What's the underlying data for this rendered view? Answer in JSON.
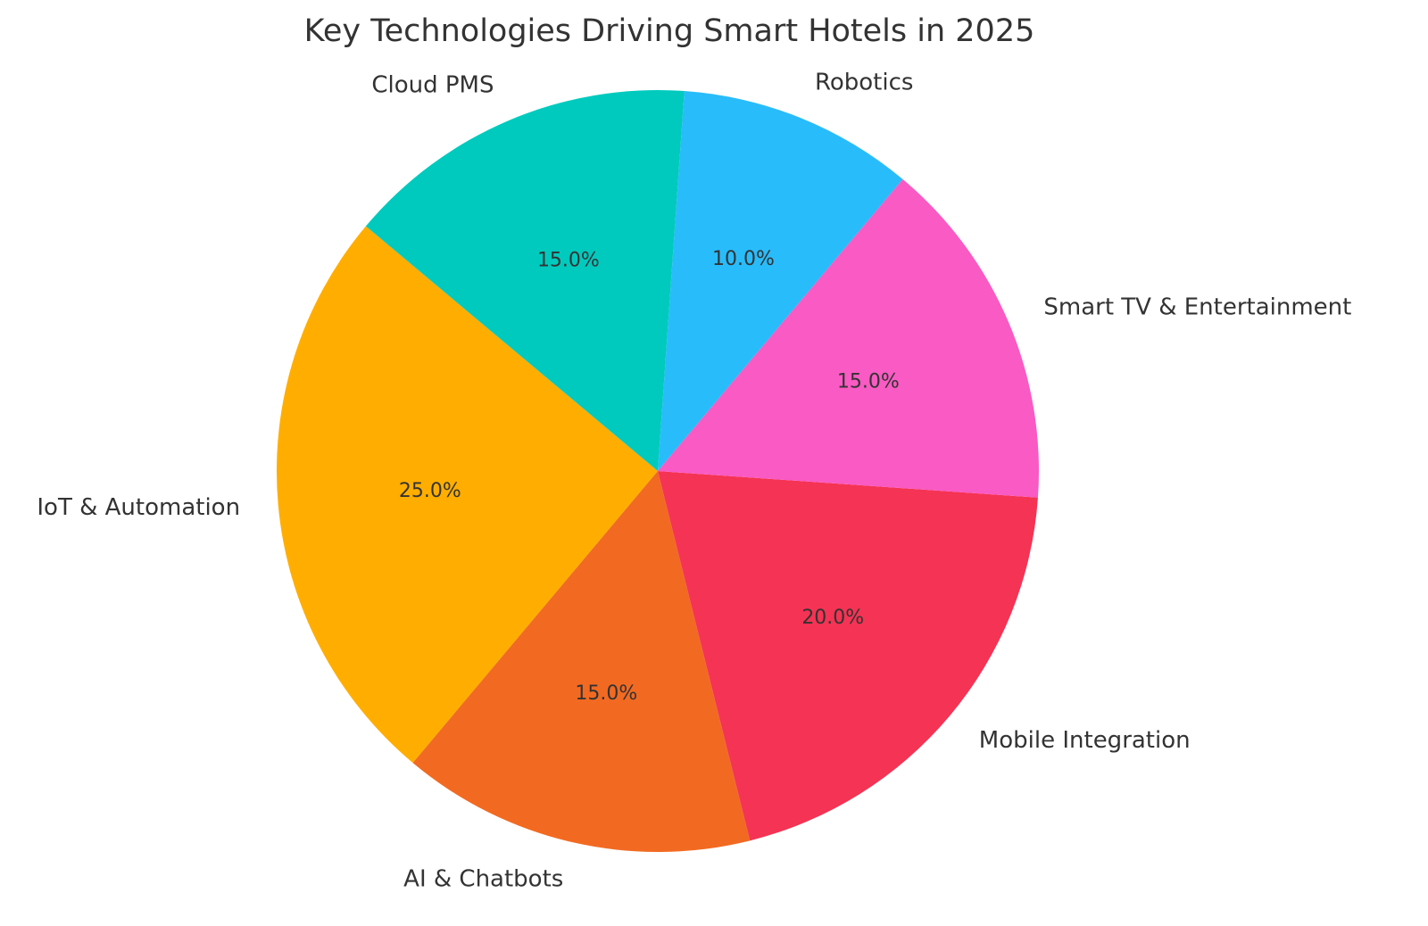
{
  "chart_data": {
    "type": "pie",
    "title": "Key Technologies Driving Smart Hotels in 2025",
    "labels": [
      "IoT & Automation",
      "AI & Chatbots",
      "Mobile Integration",
      "Smart TV & Entertainment",
      "Robotics",
      "Cloud PMS"
    ],
    "values": [
      25,
      15,
      20,
      15,
      10,
      15
    ],
    "percent_labels": [
      "25.0%",
      "15.0%",
      "20.0%",
      "15.0%",
      "10.0%",
      "15.0%"
    ],
    "colors": [
      "#FFAE00",
      "#F26A21",
      "#F53354",
      "#F95AC3",
      "#29BCFB",
      "#00CABE"
    ],
    "start_angle_deg": 140,
    "direction": "counterclockwise",
    "legend": "none"
  }
}
